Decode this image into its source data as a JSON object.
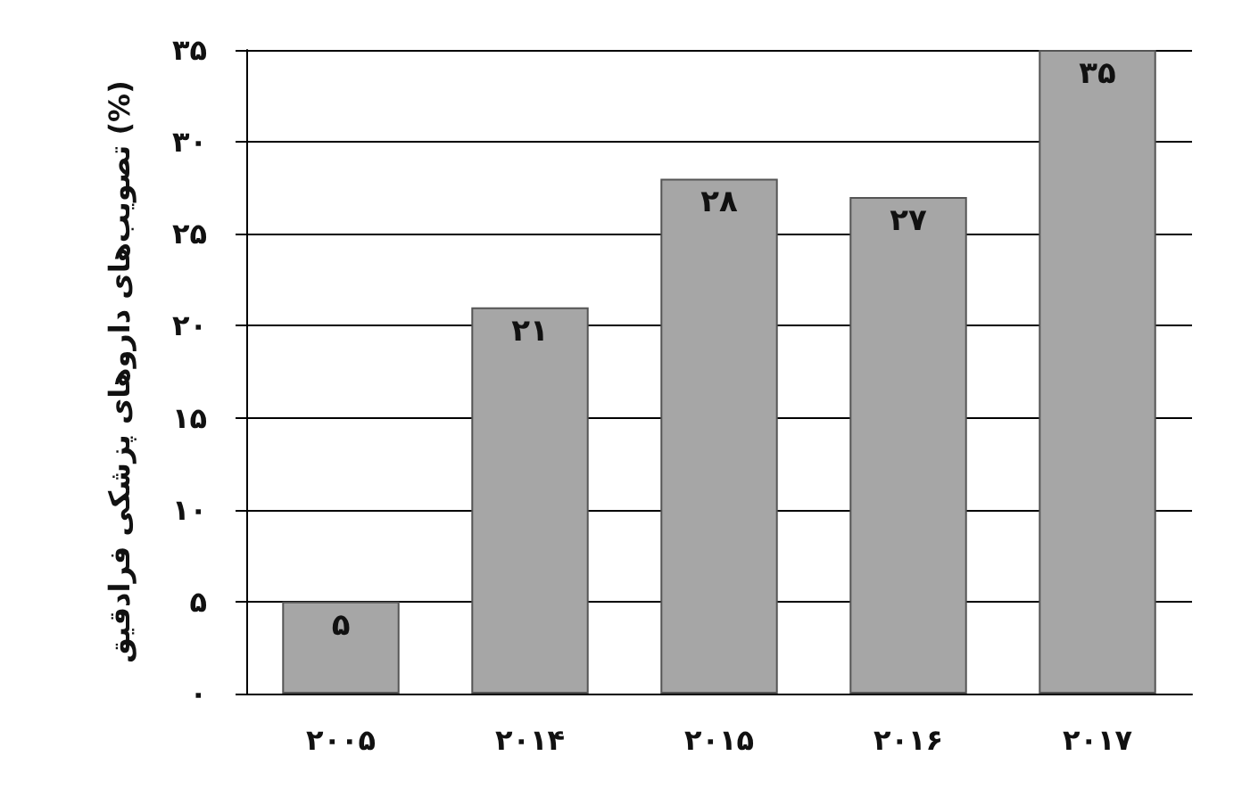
{
  "chart_data": {
    "type": "bar",
    "ylabel": "تصویب‌های داروهای پزشکی فرادقیق (%)",
    "categories": [
      "۲۰۰۵",
      "۲۰۱۴",
      "۲۰۱۵",
      "۲۰۱۶",
      "۲۰۱۷"
    ],
    "values": [
      5,
      21,
      28,
      27,
      35
    ],
    "color": "#a6a6a6",
    "value_labels": [
      "۵",
      "۲۱",
      "۲۸",
      "۲۷",
      "۳۵"
    ],
    "ylim": [
      0,
      35
    ],
    "yticks": [
      {
        "value": 0,
        "label": "۰"
      },
      {
        "value": 5,
        "label": "۵"
      },
      {
        "value": 10,
        "label": "۱۰"
      },
      {
        "value": 15,
        "label": "۱۵"
      },
      {
        "value": 20,
        "label": "۲۰"
      },
      {
        "value": 25,
        "label": "۲۵"
      },
      {
        "value": 30,
        "label": "۳۰"
      },
      {
        "value": 35,
        "label": "۳۵"
      }
    ],
    "grid": "y"
  }
}
